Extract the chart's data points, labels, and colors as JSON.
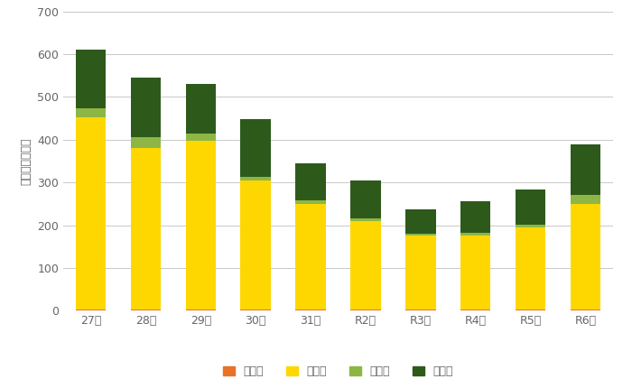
{
  "categories": [
    "27年",
    "28年",
    "29年",
    "30年",
    "31年",
    "R2年",
    "R3年",
    "R4年",
    "R5年",
    "R6年"
  ],
  "series": {
    "凶悪犯": [
      3,
      3,
      4,
      2,
      2,
      2,
      2,
      4,
      2,
      2
    ],
    "窃盗犯": [
      450,
      378,
      393,
      302,
      248,
      207,
      173,
      173,
      193,
      248
    ],
    "粗暴犯": [
      20,
      25,
      18,
      10,
      8,
      6,
      5,
      6,
      7,
      20
    ],
    "その他": [
      138,
      139,
      115,
      135,
      87,
      90,
      58,
      74,
      82,
      118
    ]
  },
  "colors": {
    "凶悪犯": "#E8722A",
    "窃盗犯": "#FFD700",
    "粗暴犯": "#8DB645",
    "その他": "#2D5A1B"
  },
  "ylabel": "認知件数（件）",
  "ylim": [
    0,
    700
  ],
  "yticks": [
    0,
    100,
    200,
    300,
    400,
    500,
    600,
    700
  ],
  "background_color": "#FFFFFF",
  "grid_color": "#C8C8C8",
  "bar_width": 0.55,
  "figsize": [
    7.0,
    4.2
  ],
  "dpi": 100,
  "legend_labels": [
    "凶悪犯",
    "窃盗犯",
    "粗暴犯",
    "その他"
  ]
}
